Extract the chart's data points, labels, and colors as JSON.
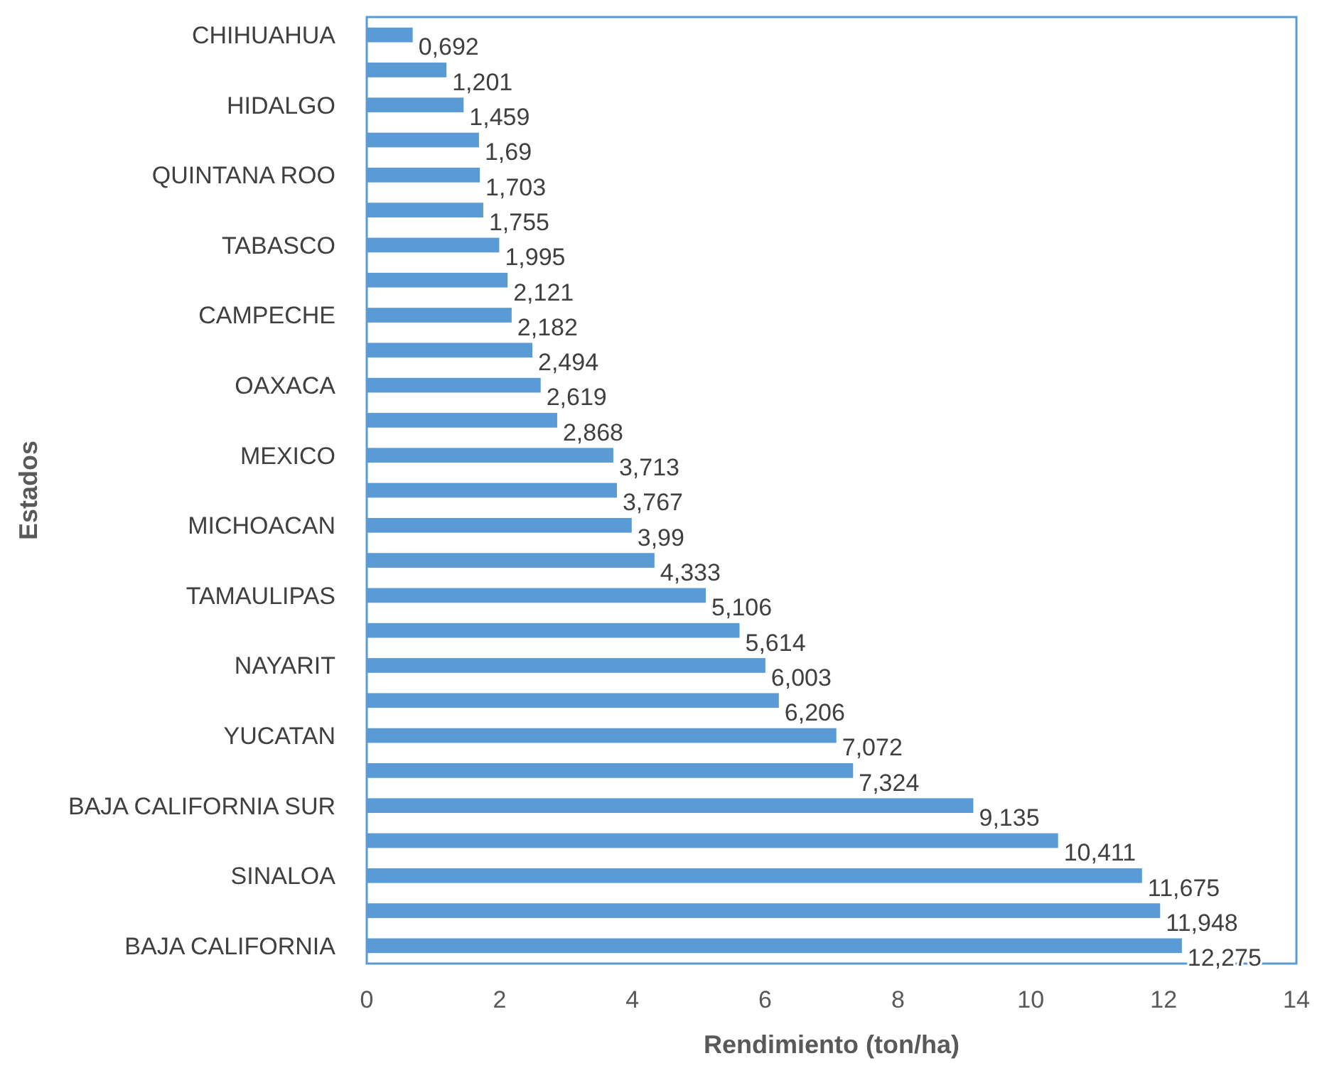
{
  "chart_data": {
    "type": "bar",
    "orientation": "horizontal",
    "xlabel": "Rendimiento (ton/ha)",
    "ylabel": "Estados",
    "categories": [
      "CHIHUAHUA",
      null,
      "HIDALGO",
      null,
      "QUINTANA ROO",
      null,
      "TABASCO",
      null,
      "CAMPECHE",
      null,
      "OAXACA",
      null,
      "MEXICO",
      null,
      "MICHOACAN",
      null,
      "TAMAULIPAS",
      null,
      "NAYARIT",
      null,
      "YUCATAN",
      null,
      "BAJA CALIFORNIA SUR",
      null,
      "SINALOA",
      null,
      "BAJA CALIFORNIA"
    ],
    "values": [
      0.692,
      1.201,
      1.459,
      1.69,
      1.703,
      1.755,
      1.995,
      2.121,
      2.182,
      2.494,
      2.619,
      2.868,
      3.713,
      3.767,
      3.99,
      4.333,
      5.106,
      5.614,
      6.003,
      6.206,
      7.072,
      7.324,
      9.135,
      10.411,
      11.675,
      11.948,
      12.275
    ],
    "value_labels": [
      "0,692",
      "1,201",
      "1,459",
      "1,69",
      "1,703",
      "1,755",
      "1,995",
      "2,121",
      "2,182",
      "2,494",
      "2,619",
      "2,868",
      "3,713",
      "3,767",
      "3,99",
      "4,333",
      "5,106",
      "5,614",
      "6,003",
      "6,206",
      "7,072",
      "7,324",
      "9,135",
      "10,411",
      "11,675",
      "11,948",
      "12,275"
    ],
    "color": "#5b9bd5",
    "xlim": [
      0,
      14
    ],
    "xticks": [
      0,
      2,
      4,
      6,
      8,
      10,
      12,
      14
    ]
  }
}
